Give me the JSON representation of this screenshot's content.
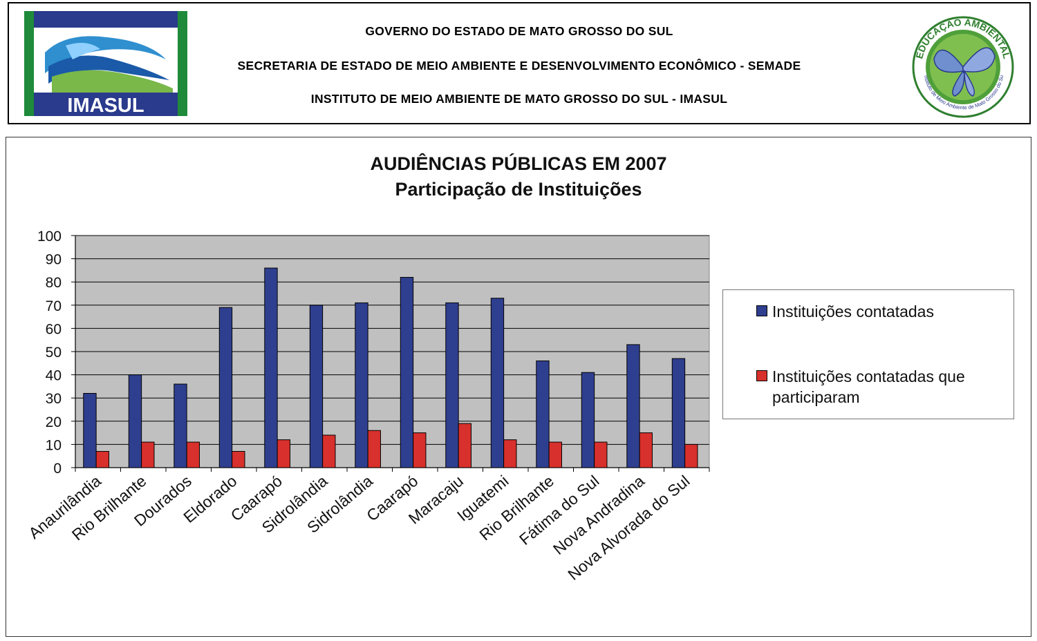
{
  "header": {
    "line1": "GOVERNO DO ESTADO DE MATO GROSSO DO SUL",
    "line2": "SECRETARIA DE ESTADO DE MEIO AMBIENTE E DESENVOLVIMENTO ECONÔMICO - SEMADE",
    "line3": "INSTITUTO DE MEIO AMBIENTE DE MATO GROSSO DO SUL - IMASUL",
    "logo_left_text": "IMASUL",
    "logo_right_text_top": "EDUCAÇÃO AMBIENTAL",
    "logo_right_text_bottom": "Instituto de Meio Ambiente de Mato Grosso do Sul"
  },
  "colors": {
    "series1": "#2f3f8f",
    "series2": "#d8302c",
    "plot_bg": "#c0c0c0"
  },
  "chart_data": {
    "type": "bar",
    "title": "AUDIÊNCIAS PÚBLICAS EM 2007",
    "subtitle": "Participação de Instituições",
    "categories": [
      "Anaurilândia",
      "Rio Brilhante",
      "Dourados",
      "Eldorado",
      "Caarapó",
      "Sidrolândia",
      "Sidrolândia",
      "Caarapó",
      "Maracaju",
      "Iguatemi",
      "Rio Brilhante",
      "Fátima do Sul",
      "Nova Andradina",
      "Nova Alvorada do Sul"
    ],
    "series": [
      {
        "name": "Instituições contatadas",
        "values": [
          32,
          40,
          36,
          69,
          86,
          70,
          71,
          82,
          71,
          73,
          46,
          41,
          53,
          47
        ]
      },
      {
        "name": "Instituições contatadas que participaram",
        "values": [
          7,
          11,
          11,
          7,
          12,
          14,
          16,
          15,
          19,
          12,
          11,
          11,
          15,
          10
        ]
      }
    ],
    "ylim": [
      0,
      100
    ],
    "yticks": [
      0,
      10,
      20,
      30,
      40,
      50,
      60,
      70,
      80,
      90,
      100
    ],
    "grid": true,
    "legend": "right"
  }
}
